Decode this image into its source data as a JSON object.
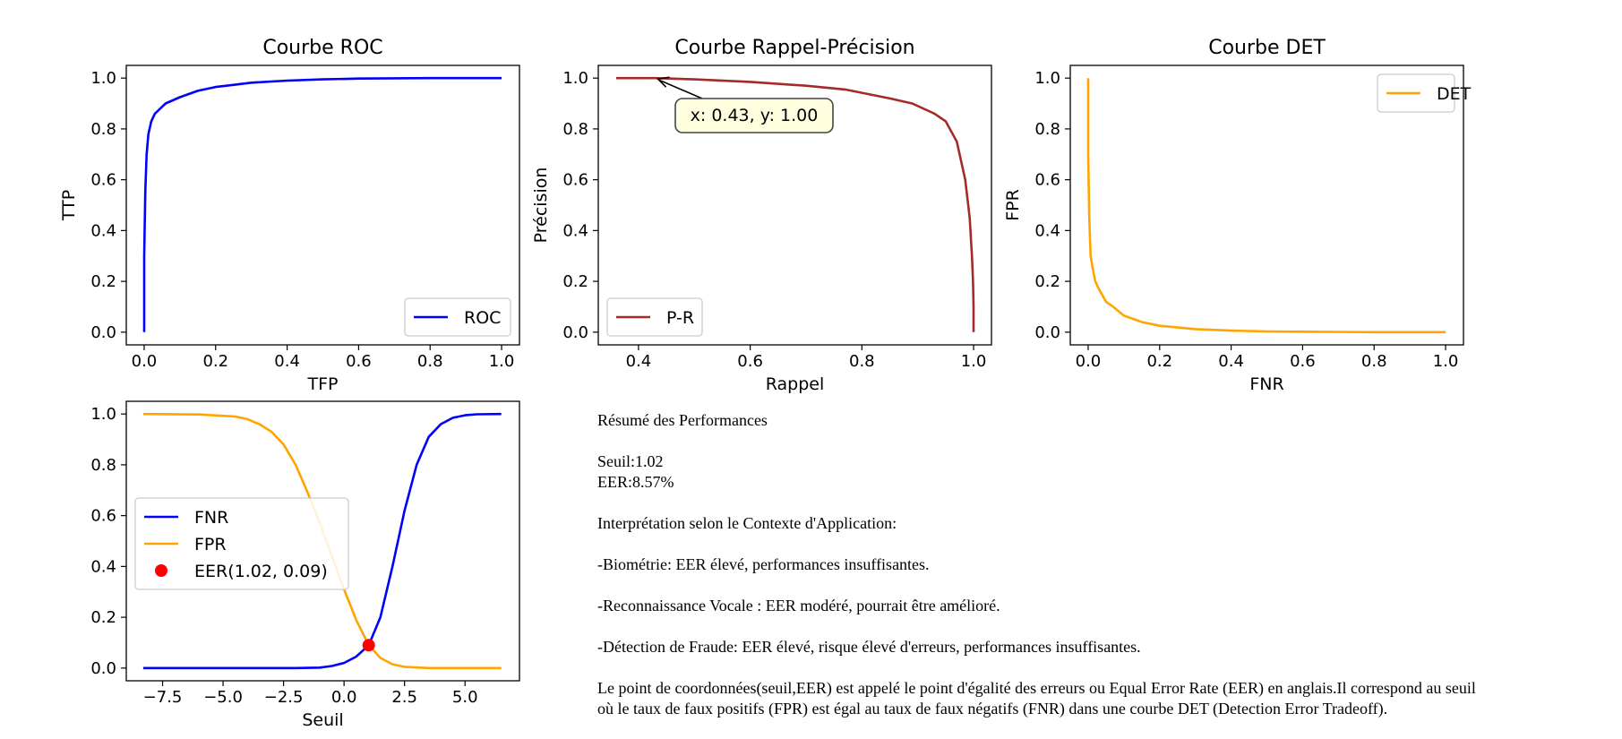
{
  "colors": {
    "roc": "#0000ff",
    "pr": "#a52a2a",
    "det": "#ffa500",
    "fnr": "#0000ff",
    "fpr": "#ffa500",
    "eer": "#ff0000",
    "annotation_bg": "#ffffe0"
  },
  "chart_data": [
    {
      "type": "line",
      "title": "Courbe ROC",
      "xlabel": "TFP",
      "ylabel": "TTP",
      "xlim": [
        -0.05,
        1.05
      ],
      "ylim": [
        -0.05,
        1.05
      ],
      "xticks": [
        0.0,
        0.2,
        0.4,
        0.6,
        0.8,
        1.0
      ],
      "yticks": [
        0.0,
        0.2,
        0.4,
        0.6,
        0.8,
        1.0
      ],
      "xtick_labels": [
        "0.0",
        "0.2",
        "0.4",
        "0.6",
        "0.8",
        "1.0"
      ],
      "ytick_labels": [
        "0.0",
        "0.2",
        "0.4",
        "0.6",
        "0.8",
        "1.0"
      ],
      "legend_position": "lower right",
      "grid": false,
      "series": [
        {
          "name": "ROC",
          "color": "#0000ff",
          "x": [
            0.0,
            0.0,
            0.003,
            0.007,
            0.012,
            0.02,
            0.03,
            0.045,
            0.06,
            0.1,
            0.15,
            0.2,
            0.3,
            0.4,
            0.5,
            0.6,
            0.8,
            1.0
          ],
          "y": [
            0.0,
            0.3,
            0.55,
            0.7,
            0.78,
            0.83,
            0.86,
            0.88,
            0.9,
            0.925,
            0.95,
            0.965,
            0.982,
            0.99,
            0.995,
            0.998,
            1.0,
            1.0
          ]
        }
      ]
    },
    {
      "type": "line",
      "title": "Courbe Rappel-Précision",
      "xlabel": "Rappel",
      "ylabel": "Précision",
      "xlim": [
        0.328,
        1.032
      ],
      "ylim": [
        -0.05,
        1.05
      ],
      "xticks": [
        0.4,
        0.6,
        0.8,
        1.0
      ],
      "yticks": [
        0.0,
        0.2,
        0.4,
        0.6,
        0.8,
        1.0
      ],
      "xtick_labels": [
        "0.4",
        "0.6",
        "0.8",
        "1.0"
      ],
      "ytick_labels": [
        "0.0",
        "0.2",
        "0.4",
        "0.6",
        "0.8",
        "1.0"
      ],
      "legend_position": "lower left",
      "grid": false,
      "annotation": {
        "text": "x: 0.43, y: 1.00",
        "x": 0.43,
        "y": 1.0
      },
      "series": [
        {
          "name": "P-R",
          "color": "#a52a2a",
          "x": [
            0.36,
            0.43,
            0.5,
            0.6,
            0.7,
            0.77,
            0.85,
            0.89,
            0.93,
            0.95,
            0.97,
            0.985,
            0.993,
            0.997,
            0.999,
            1.0,
            1.0
          ],
          "y": [
            1.0,
            1.0,
            0.995,
            0.985,
            0.97,
            0.955,
            0.92,
            0.9,
            0.86,
            0.83,
            0.75,
            0.6,
            0.45,
            0.3,
            0.2,
            0.1,
            0.0
          ]
        }
      ]
    },
    {
      "type": "line",
      "title": "Courbe DET",
      "xlabel": "FNR",
      "ylabel": "FPR",
      "xlim": [
        -0.05,
        1.05
      ],
      "ylim": [
        -0.05,
        1.05
      ],
      "xticks": [
        0.0,
        0.2,
        0.4,
        0.6,
        0.8,
        1.0
      ],
      "yticks": [
        0.0,
        0.2,
        0.4,
        0.6,
        0.8,
        1.0
      ],
      "xtick_labels": [
        "0.0",
        "0.2",
        "0.4",
        "0.6",
        "0.8",
        "1.0"
      ],
      "ytick_labels": [
        "0.0",
        "0.2",
        "0.4",
        "0.6",
        "0.8",
        "1.0"
      ],
      "legend_position": "upper right",
      "grid": false,
      "series": [
        {
          "name": "DET",
          "color": "#ffa500",
          "x": [
            0.0,
            0.0,
            0.003,
            0.007,
            0.013,
            0.02,
            0.03,
            0.05,
            0.07,
            0.1,
            0.15,
            0.2,
            0.3,
            0.4,
            0.5,
            0.6,
            0.8,
            1.0
          ],
          "y": [
            1.0,
            0.7,
            0.45,
            0.3,
            0.25,
            0.2,
            0.17,
            0.12,
            0.1,
            0.065,
            0.04,
            0.025,
            0.012,
            0.006,
            0.003,
            0.002,
            0.0,
            0.0
          ]
        }
      ]
    },
    {
      "type": "line",
      "title": "",
      "xlabel": "Seuil",
      "ylabel": "",
      "xlim": [
        -9.0,
        7.25
      ],
      "ylim": [
        -0.05,
        1.05
      ],
      "xticks": [
        -7.5,
        -5.0,
        -2.5,
        0.0,
        2.5,
        5.0
      ],
      "yticks": [
        0.0,
        0.2,
        0.4,
        0.6,
        0.8,
        1.0
      ],
      "xtick_labels": [
        "−7.5",
        "−5.0",
        "−2.5",
        "0.0",
        "2.5",
        "5.0"
      ],
      "ytick_labels": [
        "0.0",
        "0.2",
        "0.4",
        "0.6",
        "0.8",
        "1.0"
      ],
      "legend_position": "center left",
      "grid": false,
      "series": [
        {
          "name": "FNR",
          "color": "#0000ff",
          "x": [
            -8.3,
            -2.0,
            -1.0,
            -0.5,
            0.0,
            0.5,
            1.02,
            1.5,
            2.0,
            2.5,
            3.0,
            3.5,
            4.0,
            4.5,
            5.0,
            5.5,
            6.5
          ],
          "y": [
            0.0,
            0.0,
            0.002,
            0.008,
            0.02,
            0.045,
            0.09,
            0.2,
            0.4,
            0.62,
            0.8,
            0.91,
            0.96,
            0.985,
            0.995,
            0.999,
            1.0
          ]
        },
        {
          "name": "FPR",
          "color": "#ffa500",
          "x": [
            -8.3,
            -6.0,
            -4.5,
            -4.0,
            -3.5,
            -3.0,
            -2.5,
            -2.0,
            -1.5,
            -1.0,
            -0.5,
            0.0,
            0.5,
            1.02,
            1.5,
            2.0,
            2.5,
            3.5,
            6.5
          ],
          "y": [
            1.0,
            0.998,
            0.99,
            0.98,
            0.96,
            0.93,
            0.88,
            0.8,
            0.69,
            0.57,
            0.44,
            0.31,
            0.19,
            0.09,
            0.04,
            0.015,
            0.005,
            0.0,
            0.0
          ]
        },
        {
          "name": "EER(1.02, 0.09)",
          "color": "#ff0000",
          "type": "scatter",
          "x": [
            1.02
          ],
          "y": [
            0.09
          ]
        }
      ]
    }
  ],
  "summary": {
    "title": "Résumé des Performances",
    "seuil": "Seuil:1.02",
    "eer": "EER:8.57%",
    "context_heading": "Interprétation selon le Contexte d'Application:",
    "biometrie": "-Biométrie: EER élevé, performances insuffisantes.",
    "vocale": "-Reconnaissance Vocale : EER modéré, pourrait être amélioré.",
    "fraude": "-Détection de Fraude: EER élevé, risque élevé d'erreurs, performances insuffisantes.",
    "explanation_line1": "Le point de coordonnées(seuil,EER) est appelé le point d'égalité des erreurs ou Equal Error Rate (EER) en anglais.Il correspond au seuil",
    "explanation_line2": "où le taux de faux positifs (FPR) est égal au taux de faux négatifs (FNR) dans une courbe DET (Detection Error Tradeoff)."
  }
}
